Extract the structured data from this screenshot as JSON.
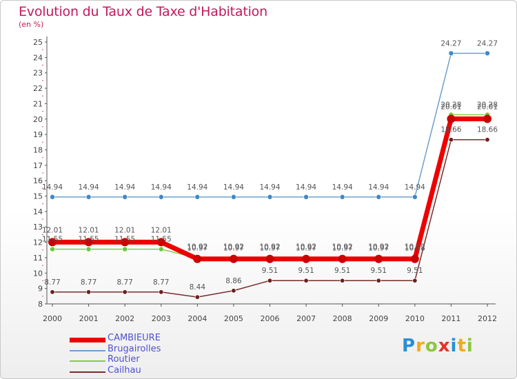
{
  "title": "Evolution du Taux de Taxe d'Habitation",
  "unit": "(en %)",
  "brand": {
    "letters": [
      "P",
      "r",
      "o",
      "x",
      "i",
      "t",
      "i"
    ],
    "colors": [
      "#2a8fd6",
      "#f2a91c",
      "#8cc63f",
      "#e4332a",
      "#2a8fd6",
      "#f2a91c",
      "#8cc63f"
    ]
  },
  "chart_data": {
    "type": "line",
    "title": "Evolution du Taux de Taxe d'Habitation",
    "ylabel": "(en %)",
    "xlabel": "",
    "x": [
      "2000",
      "2001",
      "2002",
      "2003",
      "2004",
      "2005",
      "2006",
      "2007",
      "2008",
      "2009",
      "2010",
      "2011",
      "2012"
    ],
    "ylim": [
      8,
      25
    ],
    "yticks": [
      8,
      9,
      10,
      11,
      12,
      13,
      14,
      15,
      16,
      17,
      18,
      19,
      20,
      21,
      22,
      23,
      24,
      25
    ],
    "grid": false,
    "legend_position": "bottom-left",
    "series": [
      {
        "name": "CAMBIEURE",
        "color": "#ee0000",
        "values": [
          12.01,
          12.01,
          12.01,
          12.01,
          10.92,
          10.92,
          10.92,
          10.92,
          10.92,
          10.92,
          10.92,
          20.01,
          20.01
        ],
        "labels": [
          "12.01",
          "12.01",
          "12.01",
          "12.01",
          "10.92",
          "10.92",
          "10.92",
          "10.92",
          "10.92",
          "10.92",
          "10.92",
          "20.01",
          "20.01"
        ]
      },
      {
        "name": "Brugairolles",
        "color": "#6aa0cc",
        "values": [
          14.94,
          14.94,
          14.94,
          14.94,
          14.94,
          14.94,
          14.94,
          14.94,
          14.94,
          14.94,
          14.94,
          24.27,
          24.27
        ],
        "labels": [
          "14.94",
          "14.94",
          "14.94",
          "14.94",
          "14.94",
          "14.94",
          "14.94",
          "14.94",
          "14.94",
          "14.94",
          "14.94",
          "24.27",
          "24.27"
        ]
      },
      {
        "name": "Routier",
        "color": "#88cc44",
        "values": [
          11.55,
          11.55,
          11.55,
          11.55,
          10.97,
          10.97,
          10.97,
          10.97,
          10.97,
          10.97,
          10.98,
          20.28,
          20.28
        ],
        "labels": [
          "11.55",
          "11.55",
          "11.55",
          "11.55",
          "10.97",
          "10.97",
          "10.97",
          "10.97",
          "10.97",
          "10.97",
          "10.98",
          "20.28",
          "20.28"
        ]
      },
      {
        "name": "Cailhau",
        "color": "#7a2a2a",
        "values": [
          8.77,
          8.77,
          8.77,
          8.77,
          8.44,
          8.86,
          9.51,
          9.51,
          9.51,
          9.51,
          9.51,
          18.66,
          18.66
        ],
        "labels": [
          "8.77",
          "8.77",
          "8.77",
          "8.77",
          "8.44",
          "8.86",
          "9.51",
          "9.51",
          "9.51",
          "9.51",
          "9.51",
          "18.66",
          "18.66"
        ]
      }
    ]
  }
}
